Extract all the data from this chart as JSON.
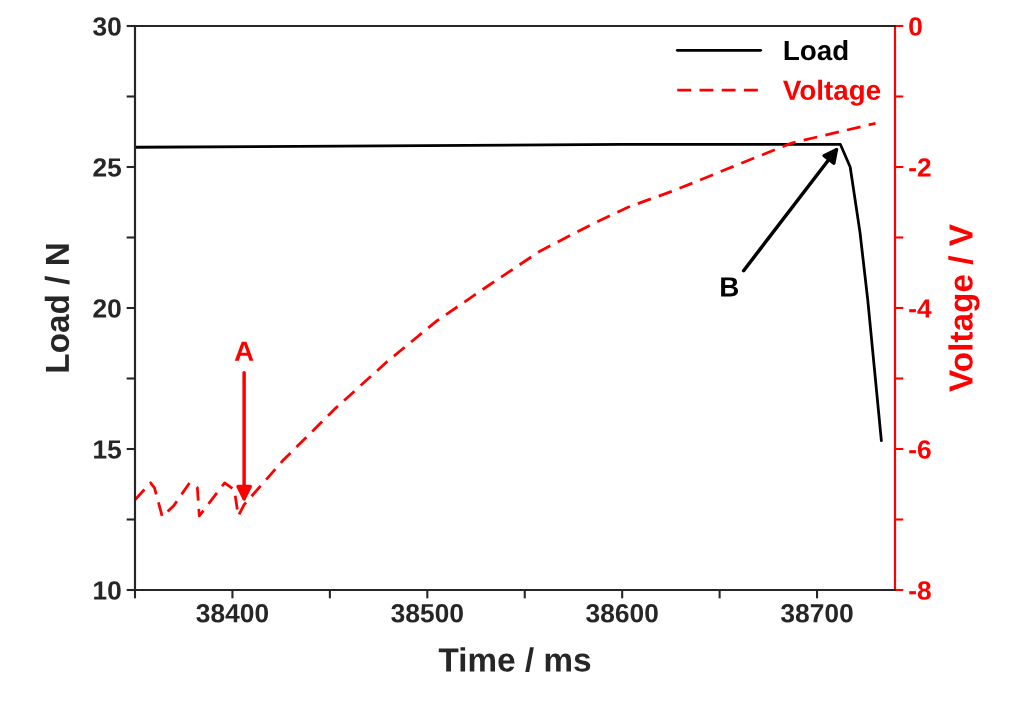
{
  "chart_data": {
    "type": "line",
    "xlabel": "Time / ms",
    "ylabel": "Load / N",
    "y2label": "Voltage / V",
    "xlim": [
      38350,
      38740
    ],
    "ylim": [
      10,
      30
    ],
    "y2lim": [
      -8,
      0
    ],
    "xticks": [
      {
        "value": 38350,
        "label": null
      },
      38400,
      {
        "value": 38450,
        "label": null
      },
      38500,
      {
        "value": 38550,
        "label": null
      },
      38600,
      {
        "value": 38650,
        "label": null
      },
      38700
    ],
    "yticks": [
      10,
      {
        "value": 12.5,
        "label": null
      },
      15,
      {
        "value": 17.5,
        "label": null
      },
      20,
      {
        "value": 22.5,
        "label": null
      },
      25,
      {
        "value": 27.5,
        "label": null
      },
      30
    ],
    "y2ticks": [
      -8,
      {
        "value": -7,
        "label": null
      },
      -6,
      {
        "value": -5,
        "label": null
      },
      -4,
      {
        "value": -3,
        "label": null
      },
      -2,
      {
        "value": -1,
        "label": null
      },
      0
    ],
    "legend": "top right",
    "grid": false,
    "series": [
      {
        "name": "Load",
        "color": "#000000",
        "line_style": "solid",
        "x": [
          38350,
          38600,
          38712,
          38717,
          38722,
          38726,
          38733
        ],
        "values": [
          25.7,
          25.8,
          25.8,
          25.0,
          22.7,
          20.3,
          15.3
        ]
      },
      {
        "name": "Voltage",
        "color": "#ff0000",
        "line_style": "dashed",
        "axis": "y2",
        "x": [
          38350,
          38358,
          38360,
          38364,
          38370,
          38378,
          38382,
          38383,
          38396,
          38401,
          38403,
          38406,
          38426,
          38453,
          38479,
          38505,
          38532,
          38558,
          38584,
          38603,
          38627,
          38659,
          38687,
          38730
        ],
        "values": [
          -6.72,
          -6.48,
          -6.55,
          -6.96,
          -6.8,
          -6.48,
          -6.55,
          -6.95,
          -6.48,
          -6.58,
          -6.95,
          -6.79,
          -6.16,
          -5.42,
          -4.77,
          -4.18,
          -3.67,
          -3.19,
          -2.82,
          -2.57,
          -2.33,
          -1.97,
          -1.66,
          -1.38
        ]
      }
    ],
    "annotations": [
      {
        "text": "A",
        "x": 38406,
        "y": 13.0
      },
      {
        "text": "B",
        "x": 38712,
        "y": 25.8
      }
    ]
  }
}
